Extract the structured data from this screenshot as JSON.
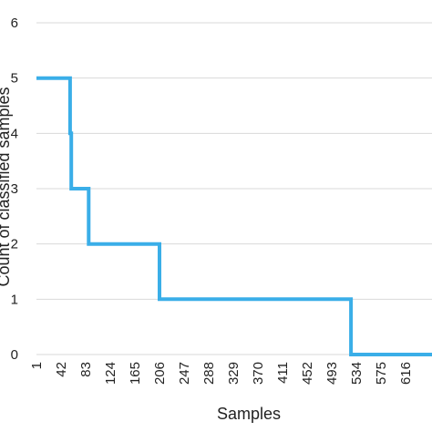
{
  "chart_data": {
    "type": "line",
    "xlabel": "Samples",
    "ylabel": "Count of classified samples",
    "ylim": [
      0,
      6
    ],
    "yticks": [
      0,
      1,
      2,
      3,
      4,
      5,
      6
    ],
    "xticks": [
      "1",
      "42",
      "83",
      "124",
      "165",
      "206",
      "247",
      "288",
      "329",
      "370",
      "411",
      "452",
      "493",
      "534",
      "575",
      "616"
    ],
    "grid": "horizontal",
    "series_color": "#3aaee8",
    "series": [
      {
        "x": [
          1,
          57,
          57,
          58,
          58,
          59,
          59,
          88,
          88,
          206,
          206,
          525,
          525,
          660
        ],
        "y": [
          5,
          5,
          4,
          4,
          4,
          4,
          3,
          3,
          2,
          2,
          1,
          1,
          0,
          0
        ]
      }
    ]
  }
}
